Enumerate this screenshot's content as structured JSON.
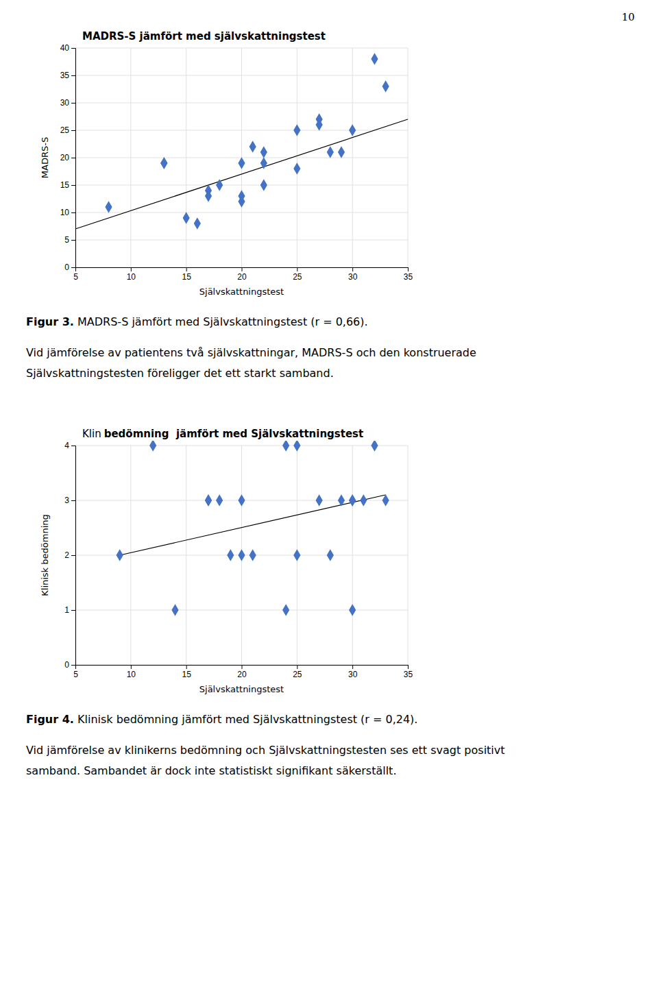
{
  "page_number": "10",
  "chart_data": [
    {
      "type": "scatter",
      "title": "MADRS-S jämfört med självskattningstest",
      "xlabel": "Självskattningstest",
      "ylabel": "MADRS-S",
      "xlim": [
        5,
        35
      ],
      "ylim": [
        0,
        40
      ],
      "xticks": [
        5,
        10,
        15,
        20,
        25,
        30,
        35
      ],
      "yticks": [
        0,
        5,
        10,
        15,
        20,
        25,
        30,
        35,
        40
      ],
      "x": [
        8,
        13,
        13,
        15,
        16,
        17,
        17,
        18,
        20,
        20,
        20,
        21,
        22,
        22,
        22,
        25,
        25,
        27,
        27,
        28,
        29,
        30,
        32,
        33
      ],
      "y": [
        11,
        19,
        19,
        9,
        8,
        14,
        13,
        15,
        13,
        12,
        19,
        22,
        21,
        15,
        19,
        25,
        18,
        27,
        26,
        21,
        21,
        25,
        38,
        33
      ],
      "color": "#4472C4",
      "marker": "diamond",
      "trendline": {
        "x": [
          5,
          35
        ],
        "y": [
          7,
          27
        ],
        "color": "#000000"
      },
      "grid": true,
      "caption_bold": "Figur 3.",
      "caption": " MADRS-S jämfört med Självskattningstest (r = 0,66).",
      "paragraph": [
        "Vid jämförelse av patientens två självskattningar, MADRS-S och den konstruerade",
        "Självskattningstesten föreligger det ett starkt samband."
      ]
    },
    {
      "type": "scatter",
      "title": [
        "Klin",
        "bedömning  jämfört med Självskattningstest"
      ],
      "xlabel": "Självskattningstest",
      "ylabel": "Klinisk bedömning",
      "xlim": [
        5,
        35
      ],
      "ylim": [
        0,
        4
      ],
      "xticks": [
        5,
        10,
        15,
        20,
        25,
        30,
        35
      ],
      "yticks": [
        0,
        1,
        2,
        3,
        4
      ],
      "x": [
        9,
        12,
        14,
        17,
        17,
        18,
        19,
        20,
        20,
        21,
        24,
        24,
        25,
        25,
        27,
        28,
        29,
        30,
        30,
        30,
        31,
        32,
        33
      ],
      "y": [
        2,
        4,
        1,
        3,
        3,
        3,
        2,
        2,
        3,
        2,
        4,
        1,
        4,
        2,
        3,
        2,
        3,
        3,
        3,
        1,
        3,
        4,
        3
      ],
      "color": "#4472C4",
      "marker": "diamond",
      "trendline": {
        "x": [
          9,
          33
        ],
        "y": [
          2.0,
          3.1
        ],
        "color": "#000000"
      },
      "grid": true,
      "caption_bold": "Figur 4.",
      "caption": " Klinisk bedömning jämfört med Självskattningstest (r = 0,24).",
      "paragraph": [
        "Vid jämförelse av klinikerns bedömning och Självskattningstesten ses ett svagt positivt",
        "samband. Sambandet är dock inte statistiskt signifikant säkerställt."
      ]
    }
  ]
}
